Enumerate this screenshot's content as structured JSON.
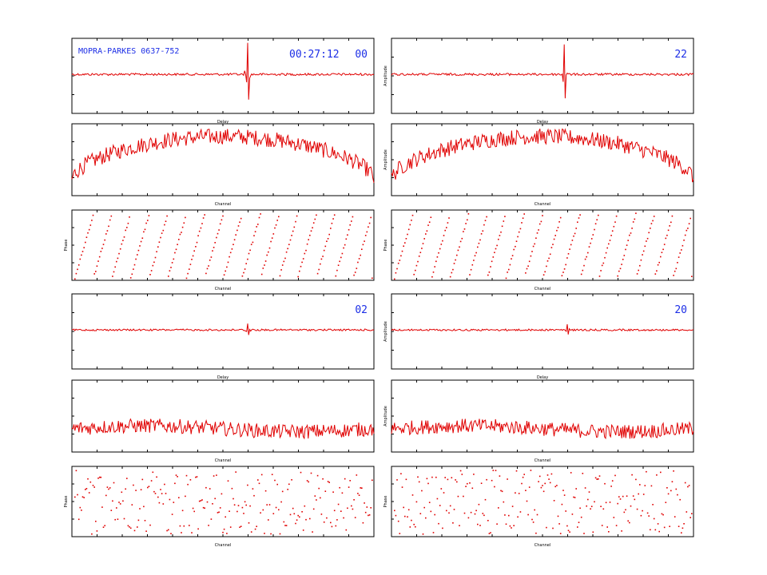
{
  "colors": {
    "trace": "#e00000",
    "annotation": "#1c2ee6",
    "frame": "#000000"
  },
  "header": {
    "title": "MOPRA-PARKES 0637-752",
    "time": "00:27:12"
  },
  "chart_data": [
    {
      "type": "line",
      "kind": "lag",
      "label": "00",
      "xlabel": "Delay",
      "ylabel": "",
      "peak": 1.0,
      "peak_channel_frac": 0.58,
      "noise": 0.015,
      "grid": false
    },
    {
      "type": "line",
      "kind": "bandpass",
      "label": "",
      "xlabel": "Channel",
      "ylabel": "",
      "shape": "rounded-dome",
      "grid": false
    },
    {
      "type": "scatter",
      "kind": "phase",
      "label": "",
      "xlabel": "Channel",
      "ylabel": "Phase",
      "pattern": "wrapped-slope",
      "wraps": 16,
      "grid": false
    },
    {
      "type": "line",
      "kind": "lag",
      "label": "22",
      "xlabel": "Delay",
      "ylabel": "Amplitude",
      "peak": 0.95,
      "peak_channel_frac": 0.57,
      "noise": 0.015,
      "grid": false
    },
    {
      "type": "line",
      "kind": "bandpass",
      "label": "",
      "xlabel": "Channel",
      "ylabel": "Amplitude",
      "shape": "rounded-dome",
      "grid": false
    },
    {
      "type": "scatter",
      "kind": "phase",
      "label": "",
      "xlabel": "Channel",
      "ylabel": "Phase",
      "pattern": "wrapped-slope",
      "wraps": 16,
      "grid": false
    },
    {
      "type": "line",
      "kind": "lag",
      "label": "02",
      "xlabel": "Delay",
      "ylabel": "",
      "peak": 0.2,
      "peak_channel_frac": 0.58,
      "noise": 0.012,
      "grid": false
    },
    {
      "type": "line",
      "kind": "bandpass",
      "label": "",
      "xlabel": "Channel",
      "ylabel": "",
      "shape": "flat-noisy",
      "grid": false
    },
    {
      "type": "scatter",
      "kind": "phase",
      "label": "",
      "xlabel": "Channel",
      "ylabel": "Phase",
      "pattern": "scattered",
      "wraps": 10,
      "grid": false
    },
    {
      "type": "line",
      "kind": "lag",
      "label": "20",
      "xlabel": "Delay",
      "ylabel": "Amplitude",
      "peak": 0.18,
      "peak_channel_frac": 0.58,
      "noise": 0.012,
      "grid": false
    },
    {
      "type": "line",
      "kind": "bandpass",
      "label": "",
      "xlabel": "Channel",
      "ylabel": "Amplitude",
      "shape": "flat-noisy",
      "grid": false
    },
    {
      "type": "scatter",
      "kind": "phase",
      "label": "",
      "xlabel": "Channel",
      "ylabel": "Phase",
      "pattern": "scattered",
      "wraps": 10,
      "grid": false
    }
  ]
}
